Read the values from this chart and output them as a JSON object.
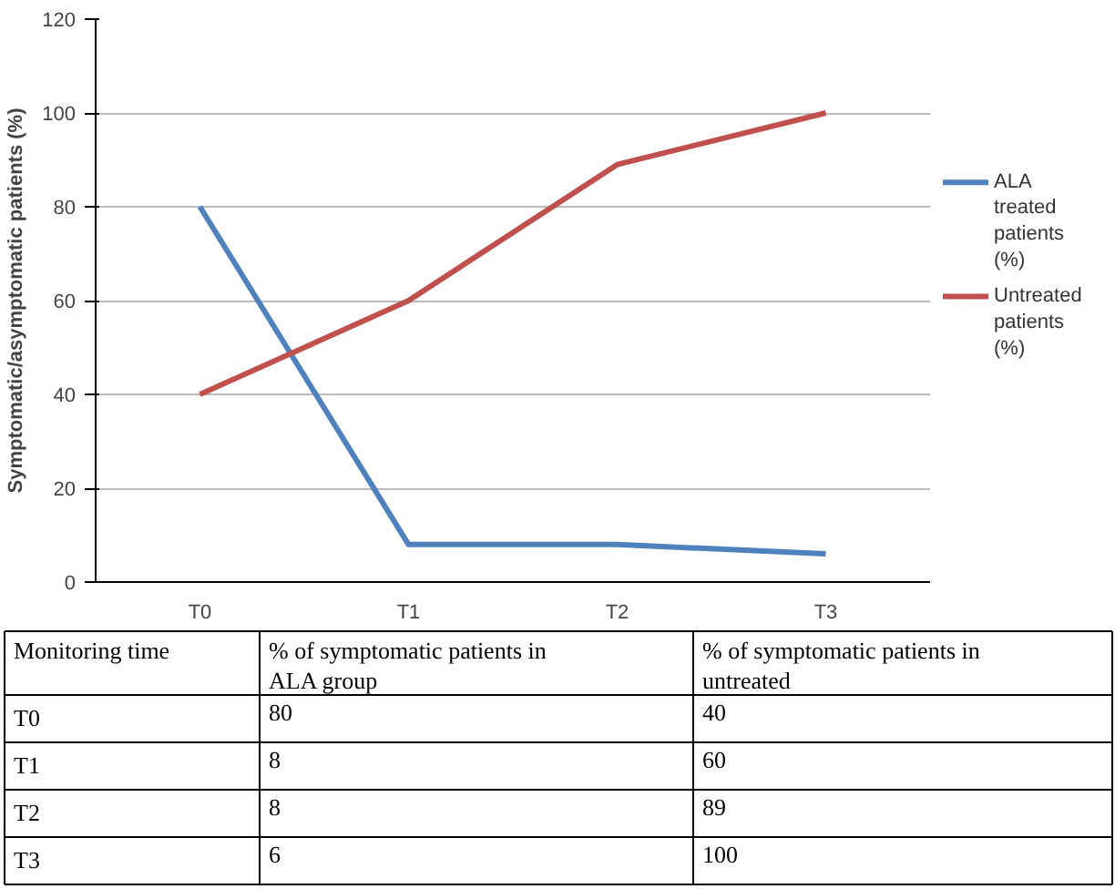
{
  "chart_data": [
    {
      "type": "line",
      "ylabel": "Symptomatic/asymptomatic patients (%)",
      "categories": [
        "T0",
        "T1",
        "T2",
        "T3"
      ],
      "series": [
        {
          "name": "ALA treated patients (%)",
          "color": "#4f81bd",
          "values": [
            80,
            8,
            8,
            6
          ]
        },
        {
          "name": "Untreated patients (%)",
          "color": "#c0504d",
          "values": [
            40,
            60,
            89,
            100
          ]
        }
      ],
      "ylim": [
        0,
        120
      ],
      "yticks": [
        0,
        20,
        40,
        60,
        80,
        100,
        120
      ],
      "grid": "y",
      "legend": "right",
      "marker": "none",
      "line_style": "solid"
    },
    {
      "type": "other",
      "xlabel": "Monitoring time",
      "categories": [
        "T0",
        "T1",
        "T2",
        "T3"
      ],
      "data_labels": true,
      "series": [
        {
          "name": "% of symptomatic patients in ALA group",
          "values": [
            80,
            8,
            8,
            6
          ]
        },
        {
          "name": "% of symptomatic patients in untreated",
          "values": [
            40,
            60,
            89,
            100
          ]
        }
      ]
    }
  ]
}
